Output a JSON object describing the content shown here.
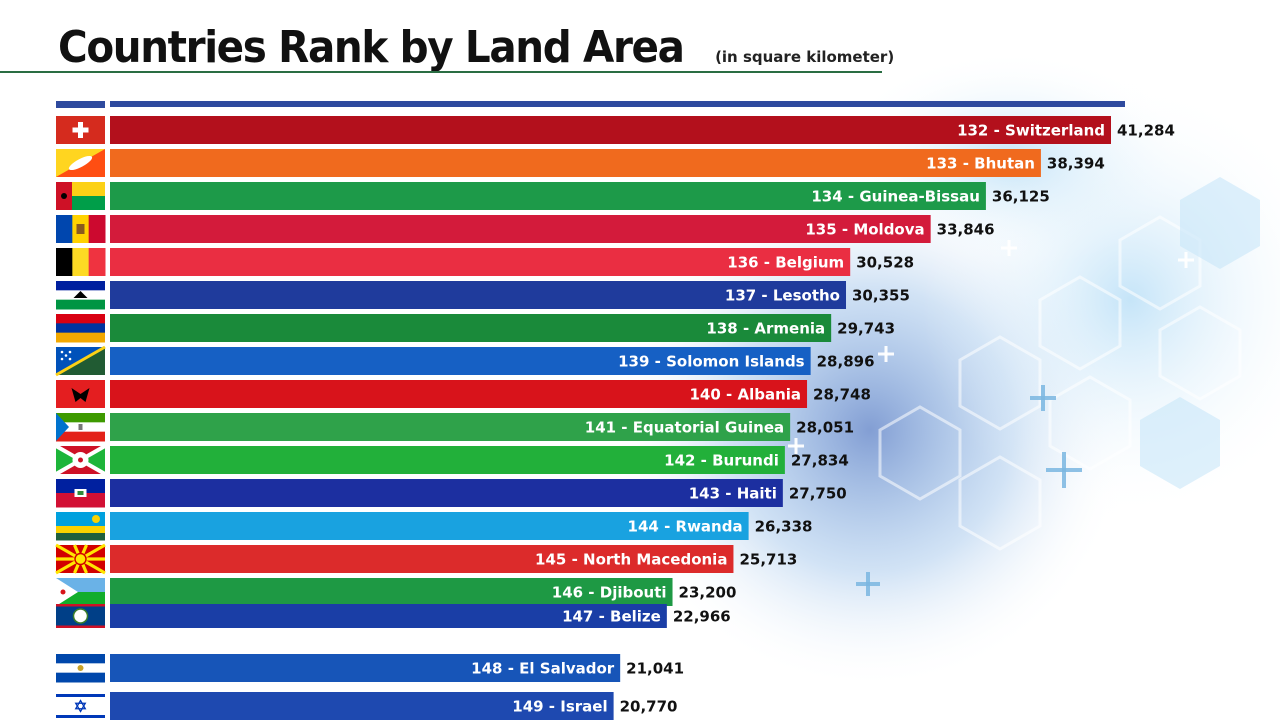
{
  "title": "Countries Rank by Land Area",
  "subtitle": "(in square kilometer)",
  "colors": {
    "title_rule": "#2a6d43",
    "top_bar": "#2e4a9e"
  },
  "chart_data": {
    "type": "bar",
    "orientation": "horizontal",
    "sorted": "descending",
    "grid": false,
    "legend": "none",
    "unit": "square kilometer",
    "bars": [
      {
        "rank": 132,
        "label": "132 - Switzerland",
        "value": 41284,
        "value_text": "41,284",
        "color": "#b3101c",
        "flag": "switzerland"
      },
      {
        "rank": 133,
        "label": "133 - Bhutan",
        "value": 38394,
        "value_text": "38,394",
        "color": "#f06a1e",
        "flag": "bhutan"
      },
      {
        "rank": 134,
        "label": "134 - Guinea-Bissau",
        "value": 36125,
        "value_text": "36,125",
        "color": "#1d9a49",
        "flag": "guinea-bissau"
      },
      {
        "rank": 135,
        "label": "135 - Moldova",
        "value": 33846,
        "value_text": "33,846",
        "color": "#d31b3b",
        "flag": "moldova"
      },
      {
        "rank": 136,
        "label": "136 - Belgium",
        "value": 30528,
        "value_text": "30,528",
        "color": "#ea2e42",
        "flag": "belgium"
      },
      {
        "rank": 137,
        "label": "137 - Lesotho",
        "value": 30355,
        "value_text": "30,355",
        "color": "#1f3b9c",
        "flag": "lesotho"
      },
      {
        "rank": 138,
        "label": "138 - Armenia",
        "value": 29743,
        "value_text": "29,743",
        "color": "#1a8a3a",
        "flag": "armenia"
      },
      {
        "rank": 139,
        "label": "139 - Solomon Islands",
        "value": 28896,
        "value_text": "28,896",
        "color": "#1660c4",
        "flag": "solomon-islands"
      },
      {
        "rank": 140,
        "label": "140 - Albania",
        "value": 28748,
        "value_text": "28,748",
        "color": "#d8131b",
        "flag": "albania"
      },
      {
        "rank": 141,
        "label": "141 - Equatorial Guinea",
        "value": 28051,
        "value_text": "28,051",
        "color": "#2fa24a",
        "flag": "equatorial-guinea"
      },
      {
        "rank": 142,
        "label": "142 - Burundi",
        "value": 27834,
        "value_text": "27,834",
        "color": "#22b03a",
        "flag": "burundi"
      },
      {
        "rank": 143,
        "label": "143 - Haiti",
        "value": 27750,
        "value_text": "27,750",
        "color": "#1c2fa0",
        "flag": "haiti"
      },
      {
        "rank": 144,
        "label": "144 - Rwanda",
        "value": 26338,
        "value_text": "26,338",
        "color": "#19a2e0",
        "flag": "rwanda"
      },
      {
        "rank": 145,
        "label": "145 - North Macedonia",
        "value": 25713,
        "value_text": "25,713",
        "color": "#dc2b2b",
        "flag": "north-macedonia"
      },
      {
        "rank": 146,
        "label": "146 - Djibouti",
        "value": 23200,
        "value_text": "23,200",
        "color": "#1e9944",
        "flag": "djibouti"
      },
      {
        "rank": 147,
        "label": "147 - Belize",
        "value": 22966,
        "value_text": "22,966",
        "color": "#1a3ea6",
        "flag": "belize"
      },
      {
        "rank": 148,
        "label": "148 - El Salvador",
        "value": 21041,
        "value_text": "21,041",
        "color": "#1755b8",
        "flag": "el-salvador"
      },
      {
        "rank": 149,
        "label": "149 - Israel",
        "value": 20770,
        "value_text": "20,770",
        "color": "#1e49b0",
        "flag": "israel"
      }
    ]
  }
}
